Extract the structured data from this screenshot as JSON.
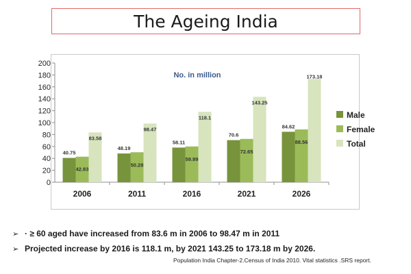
{
  "slide": {
    "title": "The Ageing India",
    "bullets": [
      {
        "arrow": "➢",
        "text": "· ≥ 60  aged have increased from 83.6 m  in 2006 to 98.47 m in 2011"
      },
      {
        "arrow": "➢",
        "text": "Projected increase by 2016 is 118.1  m, by 2021  143.25 to 173.18 m by 2026."
      }
    ],
    "source": "Population India Chapter-2.Census of India 2010.  Vital statistics .SRS report."
  },
  "chart_data": {
    "type": "bar",
    "annotation": "No. in million",
    "categories": [
      "2006",
      "2011",
      "2016",
      "2021",
      "2026"
    ],
    "series": [
      {
        "name": "Male",
        "color": "#77933c",
        "values": [
          40.75,
          48.19,
          58.11,
          70.6,
          84.62
        ],
        "labels": [
          "40.75",
          "48.19",
          "58.11",
          "70.6",
          "84.62"
        ]
      },
      {
        "name": "Female",
        "color": "#9bbb59",
        "values": [
          42.83,
          50.28,
          59.99,
          72.65,
          88.56
        ],
        "labels": [
          "42.83",
          "50.28",
          "59.99",
          "72.65",
          "88.56"
        ]
      },
      {
        "name": "Total",
        "color": "#d7e4bd",
        "values": [
          83.58,
          98.47,
          118.1,
          143.25,
          173.18
        ],
        "labels": [
          "83.58",
          "98.47",
          "118.1",
          "143.25",
          "173.18"
        ]
      }
    ],
    "ylim": [
      0,
      200
    ],
    "yticks": [
      "0",
      "20",
      "40",
      "60",
      "80",
      "100",
      "120",
      "140",
      "160",
      "180",
      "200"
    ],
    "legend_position": "right",
    "grid": false
  }
}
